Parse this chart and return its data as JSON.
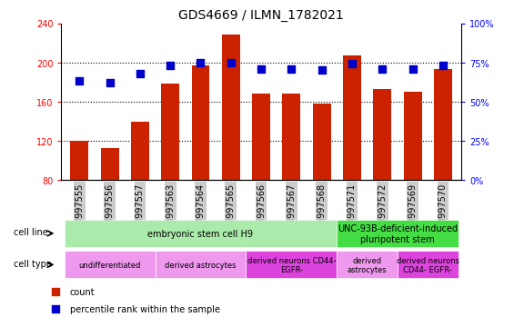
{
  "title": "GDS4669 / ILMN_1782021",
  "samples": [
    "GSM997555",
    "GSM997556",
    "GSM997557",
    "GSM997563",
    "GSM997564",
    "GSM997565",
    "GSM997566",
    "GSM997567",
    "GSM997568",
    "GSM997571",
    "GSM997572",
    "GSM997569",
    "GSM997570"
  ],
  "counts": [
    120,
    113,
    140,
    178,
    197,
    228,
    168,
    168,
    158,
    207,
    173,
    170,
    193
  ],
  "percentiles": [
    63,
    62,
    68,
    73,
    75,
    75,
    71,
    71,
    70,
    74,
    71,
    71,
    73
  ],
  "ylim_left": [
    80,
    240
  ],
  "ylim_right": [
    0,
    100
  ],
  "yticks_left": [
    80,
    120,
    160,
    200,
    240
  ],
  "yticks_right": [
    0,
    25,
    50,
    75,
    100
  ],
  "bar_color": "#cc2200",
  "dot_color": "#0000cc",
  "grid_color": "#000000",
  "xtick_bg": "#cccccc",
  "cell_line_groups": [
    {
      "label": "embryonic stem cell H9",
      "start": 0,
      "end": 8,
      "color": "#aaeaaa"
    },
    {
      "label": "UNC-93B-deficient-induced\npluripotent stem",
      "start": 9,
      "end": 12,
      "color": "#44dd44"
    }
  ],
  "cell_type_groups": [
    {
      "label": "undifferentiated",
      "start": 0,
      "end": 2,
      "color": "#ee99ee"
    },
    {
      "label": "derived astrocytes",
      "start": 3,
      "end": 5,
      "color": "#ee99ee"
    },
    {
      "label": "derived neurons CD44-\nEGFR-",
      "start": 6,
      "end": 8,
      "color": "#dd44dd"
    },
    {
      "label": "derived\nastrocytes",
      "start": 9,
      "end": 10,
      "color": "#ee99ee"
    },
    {
      "label": "derived neurons\nCD44- EGFR-",
      "start": 11,
      "end": 12,
      "color": "#dd44dd"
    }
  ],
  "bar_width": 0.6,
  "dot_size": 30,
  "title_fontsize": 10,
  "tick_fontsize": 7,
  "label_fontsize": 7
}
